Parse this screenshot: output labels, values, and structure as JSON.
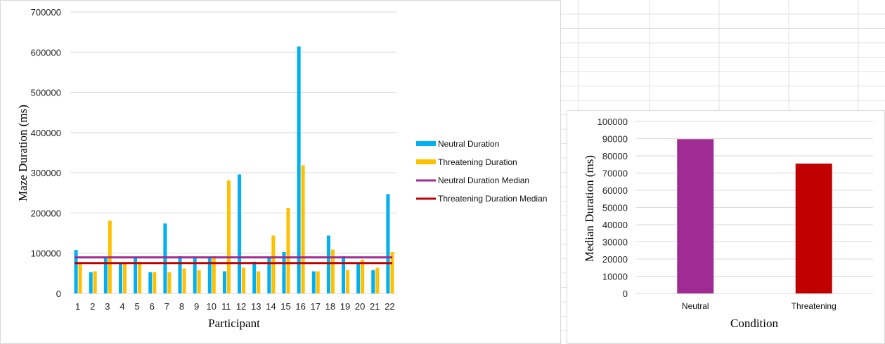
{
  "chart_data": [
    {
      "type": "bar",
      "title": "",
      "xlabel": "Participant",
      "ylabel": "Maze Duration (ms)",
      "ylim": [
        0,
        700000
      ],
      "yticks": [
        "0",
        "100000",
        "200000",
        "300000",
        "400000",
        "500000",
        "600000",
        "700000"
      ],
      "grid": true,
      "legend_position": "right",
      "categories": [
        "1",
        "2",
        "3",
        "4",
        "5",
        "6",
        "7",
        "8",
        "9",
        "10",
        "11",
        "12",
        "13",
        "14",
        "15",
        "16",
        "17",
        "18",
        "19",
        "20",
        "21",
        "22"
      ],
      "series": [
        {
          "name": "Neutral Duration",
          "kind": "bar",
          "color": "#00b0f0",
          "values": [
            108000,
            53000,
            88000,
            75000,
            88000,
            53000,
            174000,
            93000,
            88000,
            88000,
            55000,
            296000,
            79000,
            88000,
            103000,
            614000,
            55000,
            144000,
            93000,
            75000,
            58000,
            247000
          ]
        },
        {
          "name": "Threatening Duration",
          "kind": "bar",
          "color": "#ffc000",
          "values": [
            75000,
            55000,
            181000,
            75000,
            79000,
            53000,
            53000,
            62000,
            58000,
            93000,
            281000,
            64000,
            55000,
            144000,
            213000,
            319000,
            55000,
            109000,
            58000,
            84000,
            64000,
            103000
          ]
        },
        {
          "name": "Neutral Duration Median",
          "kind": "line",
          "color": "#a02b93",
          "value": 89700
        },
        {
          "name": "Threatening Duration Median",
          "kind": "line",
          "color": "#c00000",
          "value": 75500
        }
      ]
    },
    {
      "type": "bar",
      "title": "",
      "xlabel": "Condition",
      "ylabel": "Median Duration (ms)",
      "ylim": [
        0,
        100000
      ],
      "yticks": [
        "0",
        "10000",
        "20000",
        "30000",
        "40000",
        "50000",
        "60000",
        "70000",
        "80000",
        "90000",
        "100000"
      ],
      "grid": true,
      "categories": [
        "Neutral",
        "Threatening"
      ],
      "values": [
        89700,
        75500
      ],
      "colors": [
        "#a02b93",
        "#c00000"
      ]
    }
  ]
}
